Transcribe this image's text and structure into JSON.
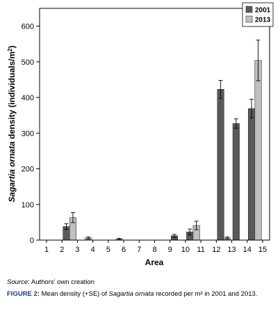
{
  "chart_data": {
    "type": "bar",
    "categories": [
      "1",
      "2",
      "3",
      "4",
      "5",
      "6",
      "7",
      "8",
      "9",
      "10",
      "11",
      "12",
      "13",
      "14",
      "15"
    ],
    "series": [
      {
        "name": "2001",
        "color": "#595959",
        "values": [
          0,
          38,
          0,
          0,
          0,
          0,
          0,
          0,
          12,
          23,
          0,
          423,
          327,
          369,
          0
        ],
        "errors": [
          0,
          8,
          0,
          0,
          0,
          0,
          0,
          0,
          4,
          8,
          0,
          25,
          13,
          26,
          0
        ]
      },
      {
        "name": "2013",
        "color": "#bfbfbf",
        "values": [
          0,
          63,
          6,
          0,
          3,
          0,
          0,
          0,
          0,
          41,
          0,
          6,
          0,
          504,
          0
        ],
        "errors": [
          0,
          14,
          3,
          0,
          2,
          0,
          0,
          0,
          0,
          12,
          0,
          3,
          0,
          57,
          0
        ]
      }
    ],
    "xlabel": "Area",
    "ylabel_prefix": "Sagartia ornata",
    "ylabel_suffix": " density (individuals/m",
    "ylabel_sup": "2",
    "ylabel_end": ")",
    "ylim": [
      0,
      650
    ],
    "yticks": [
      0,
      100,
      200,
      300,
      400,
      500,
      600
    ],
    "legend_position": "top-right"
  },
  "source": {
    "label": "Source",
    "text": ": Authors' own creation"
  },
  "caption": {
    "label": "FIGURE 2:",
    "text1": " Mean density (+SE) of ",
    "species": "Sagartia ornata",
    "text2": " recorded per m² in 2001 and 2013."
  }
}
